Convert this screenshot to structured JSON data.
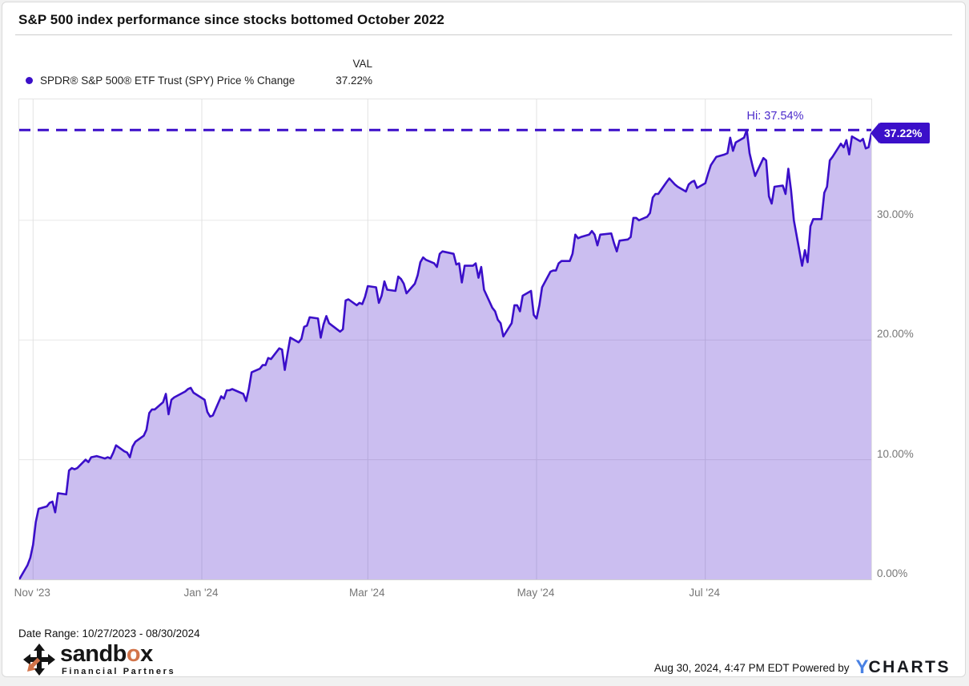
{
  "header": {
    "title": "S&P 500 index performance since stocks bottomed October 2022"
  },
  "legend": {
    "series_label": "SPDR® S&P 500® ETF Trust (SPY) Price % Change",
    "val_header": "VAL",
    "val": "37.22%"
  },
  "colors": {
    "accent": "#3b0fc9",
    "hi_label": "#4b2acb",
    "fill": "rgba(62,15,198,0.27)",
    "grid": "#e7e7e7",
    "vgrid": "#e2e2e2",
    "ycharts_blue": "#4a82e4",
    "sandbox_orange": "#d2744a"
  },
  "chart_data": {
    "type": "area",
    "title": "S&P 500 index performance since stocks bottomed October 2022",
    "series_name": "SPDR® S&P 500® ETF Trust (SPY) Price % Change",
    "unit": "percent_change",
    "x_start": "2023-10-27",
    "x_end": "2024-08-30",
    "ylim": [
      0,
      40.1
    ],
    "grid": true,
    "legend_position": "top-left",
    "y_ticks": [
      {
        "value": 0,
        "label": "0.00%"
      },
      {
        "value": 10,
        "label": "10.00%"
      },
      {
        "value": 20,
        "label": "20.00%"
      },
      {
        "value": 30,
        "label": "30.00%"
      }
    ],
    "x_ticks": [
      {
        "date": "2023-11-01",
        "label": "Nov '23"
      },
      {
        "date": "2024-01-01",
        "label": "Jan '24"
      },
      {
        "date": "2024-03-01",
        "label": "Mar '24"
      },
      {
        "date": "2024-05-01",
        "label": "May '24"
      },
      {
        "date": "2024-07-01",
        "label": "Jul '24"
      }
    ],
    "hi_marker": {
      "value": 37.54,
      "label": "Hi: 37.54%"
    },
    "last_marker": {
      "value": 37.22,
      "label": "37.22%"
    },
    "dates": [
      "2023-10-27",
      "2023-10-30",
      "2023-10-31",
      "2023-11-01",
      "2023-11-02",
      "2023-11-03",
      "2023-11-06",
      "2023-11-07",
      "2023-11-08",
      "2023-11-09",
      "2023-11-10",
      "2023-11-13",
      "2023-11-14",
      "2023-11-15",
      "2023-11-16",
      "2023-11-17",
      "2023-11-20",
      "2023-11-21",
      "2023-11-22",
      "2023-11-24",
      "2023-11-27",
      "2023-11-28",
      "2023-11-29",
      "2023-11-30",
      "2023-12-01",
      "2023-12-04",
      "2023-12-05",
      "2023-12-06",
      "2023-12-07",
      "2023-12-08",
      "2023-12-11",
      "2023-12-12",
      "2023-12-13",
      "2023-12-14",
      "2023-12-15",
      "2023-12-18",
      "2023-12-19",
      "2023-12-20",
      "2023-12-21",
      "2023-12-22",
      "2023-12-26",
      "2023-12-27",
      "2023-12-28",
      "2023-12-29",
      "2024-01-02",
      "2024-01-03",
      "2024-01-04",
      "2024-01-05",
      "2024-01-08",
      "2024-01-09",
      "2024-01-10",
      "2024-01-11",
      "2024-01-12",
      "2024-01-16",
      "2024-01-17",
      "2024-01-18",
      "2024-01-19",
      "2024-01-22",
      "2024-01-23",
      "2024-01-24",
      "2024-01-25",
      "2024-01-26",
      "2024-01-29",
      "2024-01-30",
      "2024-01-31",
      "2024-02-01",
      "2024-02-02",
      "2024-02-05",
      "2024-02-06",
      "2024-02-07",
      "2024-02-08",
      "2024-02-09",
      "2024-02-12",
      "2024-02-13",
      "2024-02-14",
      "2024-02-15",
      "2024-02-16",
      "2024-02-20",
      "2024-02-21",
      "2024-02-22",
      "2024-02-23",
      "2024-02-26",
      "2024-02-27",
      "2024-02-28",
      "2024-02-29",
      "2024-03-01",
      "2024-03-04",
      "2024-03-05",
      "2024-03-06",
      "2024-03-07",
      "2024-03-08",
      "2024-03-11",
      "2024-03-12",
      "2024-03-13",
      "2024-03-14",
      "2024-03-15",
      "2024-03-18",
      "2024-03-19",
      "2024-03-20",
      "2024-03-21",
      "2024-03-22",
      "2024-03-25",
      "2024-03-26",
      "2024-03-27",
      "2024-03-28",
      "2024-04-01",
      "2024-04-02",
      "2024-04-03",
      "2024-04-04",
      "2024-04-05",
      "2024-04-08",
      "2024-04-09",
      "2024-04-10",
      "2024-04-11",
      "2024-04-12",
      "2024-04-15",
      "2024-04-16",
      "2024-04-17",
      "2024-04-18",
      "2024-04-19",
      "2024-04-22",
      "2024-04-23",
      "2024-04-24",
      "2024-04-25",
      "2024-04-26",
      "2024-04-29",
      "2024-04-30",
      "2024-05-01",
      "2024-05-02",
      "2024-05-03",
      "2024-05-06",
      "2024-05-07",
      "2024-05-08",
      "2024-05-09",
      "2024-05-10",
      "2024-05-13",
      "2024-05-14",
      "2024-05-15",
      "2024-05-16",
      "2024-05-17",
      "2024-05-20",
      "2024-05-21",
      "2024-05-22",
      "2024-05-23",
      "2024-05-24",
      "2024-05-28",
      "2024-05-29",
      "2024-05-30",
      "2024-05-31",
      "2024-06-03",
      "2024-06-04",
      "2024-06-05",
      "2024-06-06",
      "2024-06-07",
      "2024-06-10",
      "2024-06-11",
      "2024-06-12",
      "2024-06-13",
      "2024-06-14",
      "2024-06-17",
      "2024-06-18",
      "2024-06-20",
      "2024-06-21",
      "2024-06-24",
      "2024-06-25",
      "2024-06-26",
      "2024-06-27",
      "2024-06-28",
      "2024-07-01",
      "2024-07-02",
      "2024-07-03",
      "2024-07-05",
      "2024-07-08",
      "2024-07-09",
      "2024-07-10",
      "2024-07-11",
      "2024-07-12",
      "2024-07-15",
      "2024-07-16",
      "2024-07-17",
      "2024-07-18",
      "2024-07-19",
      "2024-07-22",
      "2024-07-23",
      "2024-07-24",
      "2024-07-25",
      "2024-07-26",
      "2024-07-29",
      "2024-07-30",
      "2024-07-31",
      "2024-08-01",
      "2024-08-02",
      "2024-08-05",
      "2024-08-06",
      "2024-08-07",
      "2024-08-08",
      "2024-08-09",
      "2024-08-12",
      "2024-08-13",
      "2024-08-14",
      "2024-08-15",
      "2024-08-16",
      "2024-08-19",
      "2024-08-20",
      "2024-08-21",
      "2024-08-22",
      "2024-08-23",
      "2024-08-26",
      "2024-08-27",
      "2024-08-28",
      "2024-08-29",
      "2024-08-30"
    ],
    "values": [
      0.0,
      1.2,
      1.8,
      2.9,
      4.8,
      5.9,
      6.1,
      6.4,
      6.5,
      5.6,
      7.2,
      7.1,
      9.1,
      9.3,
      9.2,
      9.3,
      10.0,
      9.8,
      10.2,
      10.3,
      10.1,
      10.2,
      10.1,
      10.6,
      11.2,
      10.7,
      10.6,
      10.2,
      11.1,
      11.5,
      12.0,
      12.5,
      13.9,
      14.2,
      14.2,
      14.8,
      15.5,
      13.8,
      15.0,
      15.2,
      15.7,
      15.9,
      16.0,
      15.6,
      15.0,
      14.0,
      13.6,
      13.7,
      15.3,
      15.1,
      15.8,
      15.8,
      15.9,
      15.5,
      14.9,
      15.9,
      17.3,
      17.6,
      17.9,
      17.9,
      18.5,
      18.4,
      19.3,
      19.2,
      17.5,
      18.9,
      20.2,
      19.8,
      20.1,
      21.1,
      21.2,
      21.9,
      21.8,
      20.2,
      21.3,
      22.0,
      21.4,
      20.7,
      20.9,
      23.3,
      23.4,
      22.9,
      23.1,
      23.0,
      23.6,
      24.5,
      24.4,
      23.1,
      23.7,
      24.9,
      24.2,
      24.1,
      25.3,
      25.1,
      24.7,
      23.9,
      24.7,
      25.4,
      26.5,
      26.9,
      26.7,
      26.4,
      26.1,
      27.2,
      27.4,
      27.2,
      26.3,
      26.4,
      24.8,
      26.2,
      26.2,
      26.4,
      25.2,
      26.1,
      24.2,
      22.7,
      22.4,
      21.7,
      21.4,
      20.3,
      21.4,
      22.9,
      22.9,
      22.4,
      23.7,
      24.1,
      22.1,
      21.8,
      22.9,
      24.4,
      25.7,
      25.8,
      25.8,
      26.4,
      26.6,
      26.6,
      27.2,
      28.8,
      28.5,
      28.6,
      28.8,
      29.1,
      28.8,
      27.9,
      28.8,
      28.9,
      28.1,
      27.4,
      28.3,
      28.4,
      28.6,
      30.2,
      30.2,
      30.0,
      30.3,
      30.6,
      31.9,
      32.2,
      32.2,
      33.2,
      33.5,
      33.0,
      32.8,
      32.4,
      33.0,
      33.2,
      33.3,
      32.7,
      33.1,
      33.9,
      34.6,
      35.3,
      35.5,
      35.6,
      36.9,
      35.8,
      36.5,
      36.9,
      37.54,
      35.6,
      34.6,
      33.7,
      35.2,
      35.0,
      32.0,
      31.4,
      32.8,
      32.9,
      32.2,
      34.3,
      32.5,
      30.0,
      26.2,
      27.5,
      26.5,
      29.5,
      30.1,
      30.1,
      32.3,
      32.8,
      35.0,
      35.3,
      36.4,
      36.1,
      36.7,
      35.5,
      37.0,
      36.6,
      36.8,
      36.0,
      36.1,
      37.22
    ]
  },
  "footer": {
    "date_range": "Date Range: 10/27/2023 - 08/30/2024",
    "sandbox_name": "sandb",
    "sandbox_o": "o",
    "sandbox_x": "x",
    "sandbox_subtitle": "Financial Partners",
    "timestamp": "Aug 30, 2024, 4:47 PM EDT Powered by",
    "ycharts_y": "Y",
    "ycharts_charts": "CHARTS"
  }
}
